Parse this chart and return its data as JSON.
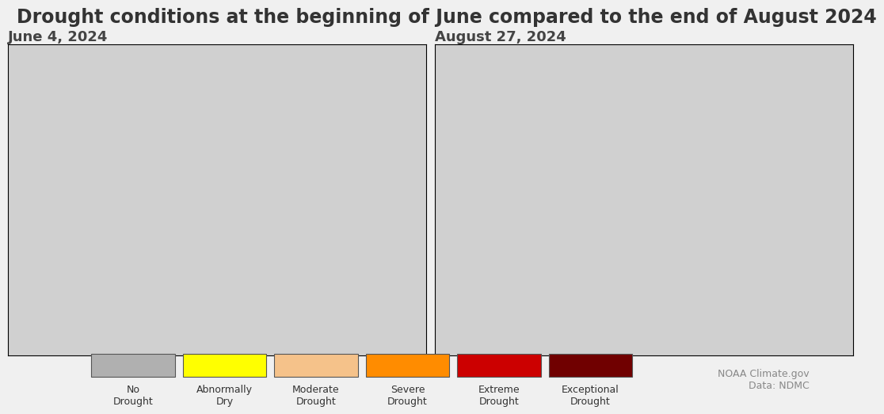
{
  "title": "Drought conditions at the beginning of June compared to the end of August 2024",
  "title_fontsize": 17,
  "title_color": "#333333",
  "subtitle_left": "June 4, 2024",
  "subtitle_right": "August 27, 2024",
  "subtitle_fontsize": 13,
  "subtitle_color": "#444444",
  "background_color": "#e8e8e8",
  "map_background": "#cccccc",
  "legend_colors": [
    "#b0b0b0",
    "#ffff00",
    "#f5c28a",
    "#ff8c00",
    "#cc0000",
    "#700000"
  ],
  "legend_labels": [
    "No\nDrought",
    "Abnormally\nDry",
    "Moderate\nDrought",
    "Severe\nDrought",
    "Extreme\nDrought",
    "Exceptional\nDrought"
  ],
  "legend_border_color": "#555555",
  "source_text": "NOAA Climate.gov\nData: NDMC",
  "source_color": "#888888",
  "source_fontsize": 9
}
